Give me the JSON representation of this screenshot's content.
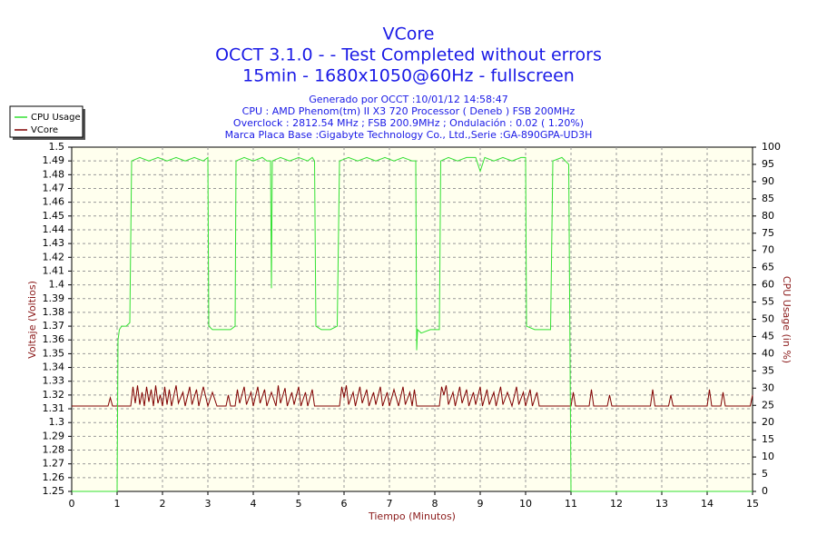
{
  "chart_data": {
    "type": "line",
    "title": "VCore",
    "subtitle": [
      "OCCT 3.1.0 -  - Test Completed without errors",
      "15min - 1680x1050@60Hz - fullscreen"
    ],
    "info": [
      "Generado por OCCT :10/01/12 14:58:47",
      "CPU : AMD Phenom(tm) II X3 720 Processor ( Deneb ) FSB 200MHz",
      "Overclock : 2812.54 MHz ; FSB 200.9MHz ; Ondulación : 0.02 ( 1.20%)",
      "Marca Placa Base :Gigabyte Technology Co., Ltd.,Serie :GA-890GPA-UD3H"
    ],
    "xlabel": "Tiempo (Minutos)",
    "ylabel": "Voltaje (Voltios)",
    "y2label": "CPU Usage (in %)",
    "xlim": [
      0,
      15
    ],
    "xticks": [
      0,
      1,
      2,
      3,
      4,
      5,
      6,
      7,
      8,
      9,
      10,
      11,
      12,
      13,
      14,
      15
    ],
    "ylim": [
      1.25,
      1.5
    ],
    "yticks": [
      1.25,
      1.26,
      1.27,
      1.28,
      1.29,
      1.3,
      1.31,
      1.32,
      1.33,
      1.34,
      1.35,
      1.36,
      1.37,
      1.38,
      1.39,
      1.4,
      1.41,
      1.42,
      1.43,
      1.44,
      1.45,
      1.46,
      1.47,
      1.48,
      1.49,
      1.5
    ],
    "y2lim": [
      0,
      100
    ],
    "y2ticks": [
      0,
      5,
      10,
      15,
      20,
      25,
      30,
      35,
      40,
      45,
      50,
      55,
      60,
      65,
      70,
      75,
      80,
      85,
      90,
      95,
      100
    ],
    "grid": true,
    "series": [
      {
        "name": "CPU Usage",
        "color": "#33e033",
        "axis": "y2",
        "x": [
          0,
          0.98,
          1.0,
          1.02,
          1.05,
          1.1,
          1.2,
          1.28,
          1.32,
          1.5,
          1.7,
          1.9,
          2.1,
          2.3,
          2.5,
          2.7,
          2.9,
          3.0,
          3.02,
          3.1,
          3.3,
          3.5,
          3.6,
          3.62,
          3.8,
          4.0,
          4.2,
          4.3,
          4.38,
          4.4,
          4.42,
          4.6,
          4.8,
          5.0,
          5.2,
          5.3,
          5.35,
          5.38,
          5.5,
          5.7,
          5.85,
          5.9,
          6.1,
          6.3,
          6.5,
          6.7,
          6.9,
          7.1,
          7.3,
          7.5,
          7.58,
          7.6,
          7.62,
          7.7,
          7.9,
          8.1,
          8.13,
          8.3,
          8.5,
          8.7,
          8.9,
          9.0,
          9.1,
          9.3,
          9.5,
          9.7,
          9.9,
          10.0,
          10.02,
          10.2,
          10.4,
          10.55,
          10.6,
          10.8,
          10.95,
          11.0,
          11.02,
          15
        ],
        "values": [
          0,
          0,
          0,
          44,
          47,
          48,
          48,
          49,
          96,
          97,
          96,
          97,
          96,
          97,
          96,
          97,
          96,
          97,
          48,
          47,
          47,
          47,
          48,
          96,
          97,
          96,
          97,
          96,
          96,
          59,
          96,
          97,
          96,
          97,
          96,
          97,
          96,
          48,
          47,
          47,
          48,
          96,
          97,
          96,
          97,
          96,
          97,
          96,
          97,
          96,
          96,
          41,
          47,
          46,
          47,
          47,
          96,
          97,
          96,
          97,
          97,
          93,
          97,
          96,
          97,
          96,
          97,
          97,
          48,
          47,
          47,
          47,
          96,
          97,
          95,
          0,
          0,
          0
        ]
      },
      {
        "name": "VCore",
        "color": "#800000",
        "x": [
          0,
          0.8,
          0.85,
          0.9,
          1.0,
          1.3,
          1.35,
          1.4,
          1.45,
          1.5,
          1.55,
          1.6,
          1.65,
          1.7,
          1.75,
          1.8,
          1.85,
          1.9,
          1.95,
          2.0,
          2.05,
          2.1,
          2.15,
          2.2,
          2.3,
          2.35,
          2.45,
          2.5,
          2.6,
          2.65,
          2.75,
          2.8,
          2.9,
          3.0,
          3.1,
          3.2,
          3.4,
          3.45,
          3.5,
          3.6,
          3.65,
          3.7,
          3.8,
          3.85,
          3.95,
          4.0,
          4.1,
          4.15,
          4.25,
          4.3,
          4.4,
          4.5,
          4.55,
          4.6,
          4.7,
          4.75,
          4.85,
          4.9,
          5.0,
          5.05,
          5.15,
          5.2,
          5.3,
          5.35,
          5.9,
          5.95,
          6.0,
          6.05,
          6.1,
          6.2,
          6.25,
          6.35,
          6.4,
          6.5,
          6.55,
          6.65,
          6.7,
          6.8,
          6.85,
          6.95,
          7.0,
          7.1,
          7.2,
          7.3,
          7.35,
          7.45,
          7.5,
          7.55,
          7.6,
          8.1,
          8.15,
          8.2,
          8.25,
          8.3,
          8.4,
          8.45,
          8.55,
          8.6,
          8.7,
          8.75,
          8.85,
          8.9,
          9.0,
          9.05,
          9.15,
          9.2,
          9.3,
          9.35,
          9.45,
          9.5,
          9.6,
          9.7,
          9.8,
          9.85,
          9.95,
          10.0,
          10.1,
          10.15,
          10.25,
          10.3,
          11.0,
          11.05,
          11.1,
          11.4,
          11.45,
          11.5,
          11.8,
          11.85,
          11.9,
          12.75,
          12.8,
          12.85,
          13.15,
          13.2,
          13.25,
          14.0,
          14.05,
          14.1,
          14.3,
          14.35,
          14.4,
          14.95,
          15
        ],
        "values": [
          1.312,
          1.312,
          1.318,
          1.312,
          1.312,
          1.312,
          1.326,
          1.314,
          1.327,
          1.313,
          1.322,
          1.312,
          1.326,
          1.315,
          1.324,
          1.312,
          1.327,
          1.314,
          1.32,
          1.312,
          1.326,
          1.313,
          1.324,
          1.312,
          1.327,
          1.314,
          1.322,
          1.312,
          1.326,
          1.313,
          1.324,
          1.312,
          1.326,
          1.312,
          1.322,
          1.312,
          1.312,
          1.32,
          1.312,
          1.312,
          1.324,
          1.314,
          1.326,
          1.313,
          1.322,
          1.312,
          1.326,
          1.314,
          1.324,
          1.312,
          1.322,
          1.312,
          1.327,
          1.314,
          1.325,
          1.312,
          1.322,
          1.313,
          1.326,
          1.312,
          1.322,
          1.312,
          1.324,
          1.312,
          1.312,
          1.326,
          1.318,
          1.327,
          1.313,
          1.322,
          1.312,
          1.326,
          1.314,
          1.324,
          1.312,
          1.322,
          1.313,
          1.326,
          1.312,
          1.322,
          1.312,
          1.324,
          1.312,
          1.326,
          1.313,
          1.322,
          1.312,
          1.324,
          1.312,
          1.312,
          1.326,
          1.32,
          1.327,
          1.313,
          1.322,
          1.312,
          1.326,
          1.314,
          1.324,
          1.312,
          1.322,
          1.313,
          1.326,
          1.312,
          1.324,
          1.313,
          1.322,
          1.312,
          1.326,
          1.313,
          1.322,
          1.312,
          1.326,
          1.313,
          1.322,
          1.312,
          1.324,
          1.312,
          1.322,
          1.312,
          1.312,
          1.322,
          1.312,
          1.312,
          1.324,
          1.312,
          1.312,
          1.32,
          1.312,
          1.312,
          1.324,
          1.312,
          1.312,
          1.32,
          1.312,
          1.312,
          1.324,
          1.312,
          1.312,
          1.322,
          1.312,
          1.312,
          1.32
        ]
      }
    ]
  }
}
